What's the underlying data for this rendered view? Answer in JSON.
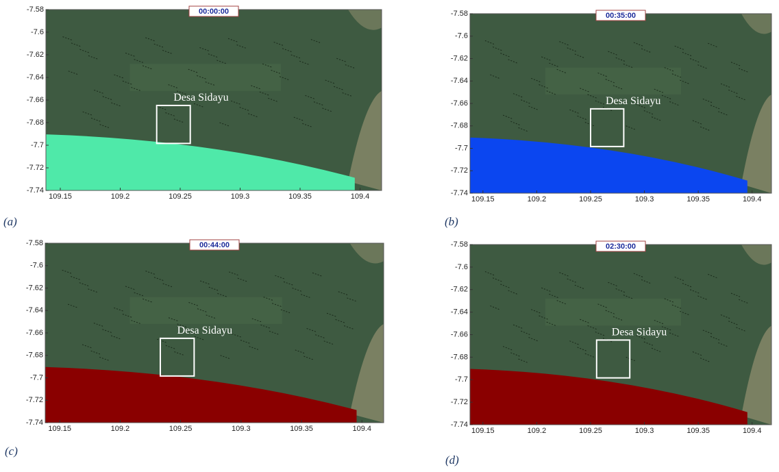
{
  "chart_data": [
    {
      "type": "map",
      "title": "00:00:00",
      "label": "(a)",
      "annotation": "Desa Sidayu",
      "sea_color": "#4fe9a9",
      "xlim": [
        109.138,
        109.418
      ],
      "ylim": [
        -7.74,
        -7.58
      ],
      "xticks": [
        109.15,
        109.2,
        109.25,
        109.3,
        109.35,
        109.4
      ],
      "yticks": [
        -7.58,
        -7.6,
        -7.62,
        -7.64,
        -7.66,
        -7.68,
        -7.7,
        -7.72,
        -7.74
      ]
    },
    {
      "type": "map",
      "title": "00:35:00",
      "label": "(b)",
      "annotation": "Desa Sidayu",
      "sea_color": "#0b46f0",
      "xlim": [
        109.138,
        109.418
      ],
      "ylim": [
        -7.74,
        -7.58
      ],
      "xticks": [
        109.15,
        109.2,
        109.25,
        109.3,
        109.35,
        109.4
      ],
      "yticks": [
        -7.58,
        -7.6,
        -7.62,
        -7.64,
        -7.66,
        -7.68,
        -7.7,
        -7.72,
        -7.74
      ]
    },
    {
      "type": "map",
      "title": "00:44:00",
      "label": "(c)",
      "annotation": "Desa Sidayu",
      "sea_color": "#8a0000",
      "xlim": [
        109.138,
        109.418
      ],
      "ylim": [
        -7.74,
        -7.58
      ],
      "xticks": [
        109.15,
        109.2,
        109.25,
        109.3,
        109.35,
        109.4
      ],
      "yticks": [
        -7.58,
        -7.6,
        -7.62,
        -7.64,
        -7.66,
        -7.68,
        -7.7,
        -7.72,
        -7.74
      ]
    },
    {
      "type": "map",
      "title": "02:30:00",
      "label": "(d)",
      "annotation": "Desa Sidayu",
      "sea_color": "#8a0000",
      "xlim": [
        109.138,
        109.418
      ],
      "ylim": [
        -7.74,
        -7.58
      ],
      "xticks": [
        109.15,
        109.2,
        109.25,
        109.3,
        109.35,
        109.4
      ],
      "yticks": [
        -7.58,
        -7.6,
        -7.62,
        -7.64,
        -7.66,
        -7.68,
        -7.7,
        -7.72,
        -7.74
      ]
    }
  ]
}
